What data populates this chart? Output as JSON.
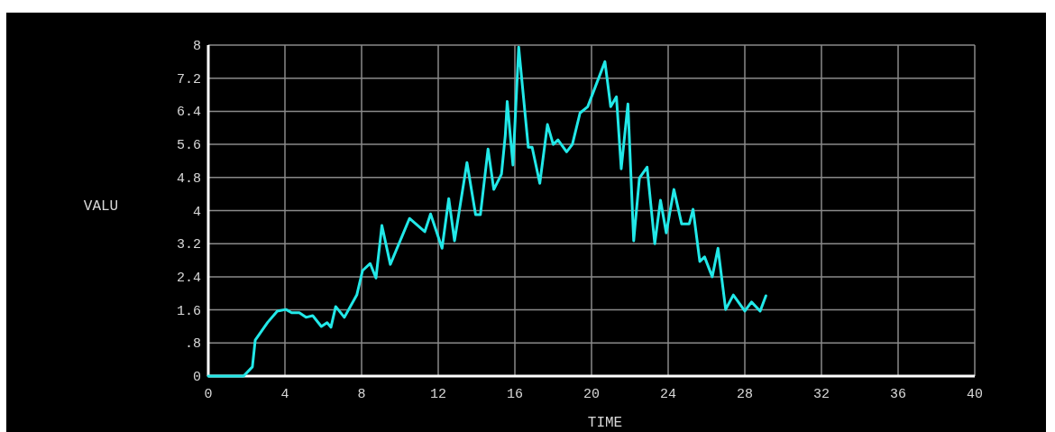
{
  "chart_data": {
    "type": "line",
    "xlabel": "TIME",
    "ylabel": "VALU",
    "xlim": [
      0,
      40
    ],
    "ylim": [
      0,
      8
    ],
    "xticks": [
      0,
      4,
      8,
      12,
      16,
      20,
      24,
      28,
      32,
      36,
      40
    ],
    "yticks": [
      0,
      {
        "value": 0.8,
        "label": ".8"
      },
      1.6,
      2.4,
      3.2,
      4,
      4.8,
      5.6,
      6.4,
      7.2,
      8
    ],
    "grid": true,
    "marker": "none",
    "line_style": "solid",
    "series": [
      {
        "color": "#22e8e8",
        "x": [
          0,
          1.84,
          2.3,
          2.45,
          3.1,
          3.6,
          4.05,
          4.35,
          4.75,
          5.1,
          5.45,
          5.9,
          6.2,
          6.4,
          6.65,
          7.1,
          7.75,
          8.05,
          8.45,
          8.75,
          9.06,
          9.5,
          10.5,
          11.3,
          11.6,
          12.2,
          12.55,
          12.85,
          13.5,
          13.95,
          14.2,
          14.6,
          14.9,
          15.3,
          15.5,
          15.6,
          15.9,
          16.2,
          16.7,
          16.9,
          17.3,
          17.7,
          18.0,
          18.25,
          18.7,
          19.0,
          19.4,
          19.8,
          20.7,
          21.0,
          21.3,
          21.55,
          21.9,
          22.2,
          22.5,
          22.9,
          23.3,
          23.6,
          23.9,
          24.3,
          24.7,
          25.1,
          25.3,
          25.65,
          25.9,
          26.3,
          26.6,
          27.0,
          27.4,
          28.0,
          28.35,
          28.8,
          29.1
        ],
        "values": [
          0,
          0,
          0.22,
          0.87,
          1.3,
          1.57,
          1.61,
          1.53,
          1.53,
          1.42,
          1.46,
          1.2,
          1.29,
          1.18,
          1.68,
          1.42,
          1.96,
          2.55,
          2.72,
          2.37,
          3.64,
          2.7,
          3.81,
          3.49,
          3.92,
          3.09,
          4.29,
          3.27,
          5.16,
          3.9,
          3.9,
          5.49,
          4.51,
          4.88,
          5.82,
          6.64,
          5.1,
          7.95,
          5.53,
          5.53,
          4.66,
          6.08,
          5.6,
          5.71,
          5.42,
          5.6,
          6.36,
          6.51,
          7.6,
          6.51,
          6.75,
          5.01,
          6.58,
          3.27,
          4.79,
          5.05,
          3.2,
          4.25,
          3.46,
          4.51,
          3.68,
          3.68,
          4.03,
          2.77,
          2.88,
          2.4,
          3.09,
          1.61,
          1.96,
          1.57,
          1.79,
          1.57,
          1.94
        ]
      }
    ]
  }
}
